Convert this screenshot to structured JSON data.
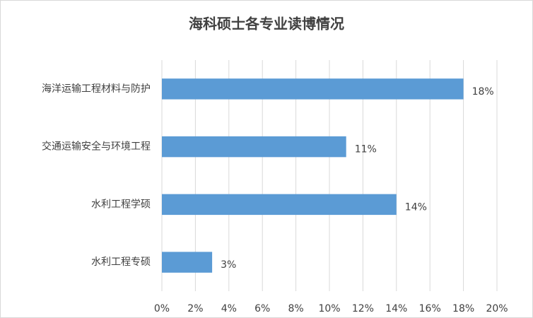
{
  "chart_data": {
    "type": "bar",
    "orientation": "horizontal",
    "title": "海科硕士各专业读博情况",
    "categories": [
      "海洋运输工程材料与防护",
      "交通运输安全与环境工程",
      "水利工程学硕",
      "水利工程专硕"
    ],
    "values": [
      18,
      11,
      14,
      3
    ],
    "value_labels": [
      "18%",
      "11%",
      "14%",
      "3%"
    ],
    "color": "#5b9bd5",
    "xlim": [
      0,
      20
    ],
    "xticks": [
      {
        "value": 0,
        "label": "0%"
      },
      {
        "value": 2,
        "label": "2%"
      },
      {
        "value": 4,
        "label": "4%"
      },
      {
        "value": 6,
        "label": "6%"
      },
      {
        "value": 8,
        "label": "8%"
      },
      {
        "value": 10,
        "label": "10%"
      },
      {
        "value": 12,
        "label": "12%"
      },
      {
        "value": 14,
        "label": "14%"
      },
      {
        "value": 16,
        "label": "16%"
      },
      {
        "value": 18,
        "label": "18%"
      },
      {
        "value": 20,
        "label": "20%"
      }
    ],
    "grid": true
  }
}
